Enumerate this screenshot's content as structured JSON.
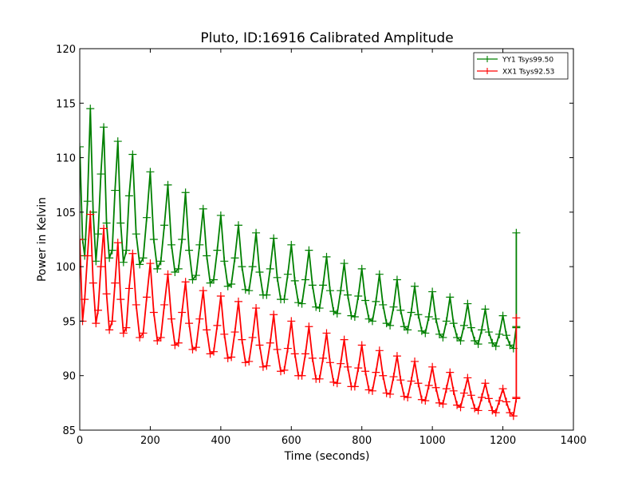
{
  "chart_data": {
    "type": "line",
    "title": "Pluto, ID:16916 Calibrated Amplitude",
    "xlabel": "Time (seconds)",
    "ylabel": "Power in Kelvin",
    "xlim": [
      0,
      1400
    ],
    "ylim": [
      85,
      120
    ],
    "x_ticks": [
      "0",
      "200",
      "400",
      "600",
      "800",
      "1000",
      "1200",
      "1400"
    ],
    "y_ticks": [
      "85",
      "90",
      "95",
      "100",
      "105",
      "110",
      "115",
      "120"
    ],
    "grid": false,
    "legend_position": "top-right",
    "marker": "plus",
    "series": [
      {
        "name": "YY1 Tsys99.50",
        "color": "#008000",
        "x": [
          0,
          8,
          14,
          22,
          30,
          38,
          46,
          52,
          60,
          68,
          76,
          84,
          92,
          100,
          108,
          116,
          124,
          132,
          140,
          150,
          160,
          170,
          180,
          190,
          200,
          210,
          220,
          230,
          240,
          250,
          260,
          270,
          280,
          290,
          300,
          310,
          320,
          330,
          340,
          350,
          360,
          370,
          380,
          390,
          400,
          410,
          420,
          430,
          440,
          450,
          460,
          470,
          480,
          490,
          500,
          510,
          520,
          530,
          540,
          550,
          560,
          570,
          580,
          590,
          600,
          610,
          620,
          630,
          640,
          650,
          660,
          670,
          680,
          690,
          700,
          710,
          720,
          730,
          740,
          750,
          760,
          770,
          780,
          790,
          800,
          810,
          820,
          830,
          840,
          850,
          860,
          870,
          880,
          890,
          900,
          910,
          920,
          930,
          940,
          950,
          960,
          970,
          980,
          990,
          1000,
          1010,
          1020,
          1030,
          1040,
          1050,
          1060,
          1070,
          1080,
          1090,
          1100,
          1110,
          1120,
          1130,
          1140,
          1150,
          1160,
          1170,
          1180,
          1190,
          1200,
          1210,
          1220,
          1230,
          1238,
          1238,
          1238
        ],
        "values": [
          111.0,
          102.5,
          101.0,
          106.0,
          114.5,
          105.0,
          100.5,
          103.0,
          108.5,
          112.8,
          104.0,
          100.8,
          101.5,
          107.0,
          111.5,
          104.0,
          100.4,
          101.5,
          106.5,
          110.3,
          103.0,
          100.2,
          100.8,
          104.5,
          108.7,
          102.5,
          99.8,
          100.5,
          103.8,
          107.5,
          102.0,
          99.5,
          99.8,
          102.5,
          106.8,
          101.5,
          98.8,
          99.2,
          102.0,
          105.3,
          101.0,
          98.5,
          98.8,
          101.5,
          104.7,
          100.5,
          98.2,
          98.4,
          100.8,
          103.8,
          100.0,
          97.9,
          97.8,
          100.0,
          103.1,
          99.5,
          97.4,
          97.4,
          99.8,
          102.6,
          99.0,
          97.0,
          97.0,
          99.3,
          102.0,
          98.7,
          96.7,
          96.6,
          98.8,
          101.5,
          98.3,
          96.3,
          96.2,
          98.3,
          100.9,
          97.8,
          95.9,
          95.7,
          97.8,
          100.3,
          97.4,
          95.5,
          95.4,
          97.3,
          99.8,
          96.9,
          95.2,
          95.0,
          96.8,
          99.3,
          96.5,
          94.8,
          94.6,
          96.3,
          98.8,
          96.0,
          94.5,
          94.2,
          95.8,
          98.2,
          95.6,
          94.1,
          93.9,
          95.4,
          97.7,
          95.2,
          93.8,
          93.5,
          95.0,
          97.2,
          94.8,
          93.5,
          93.2,
          94.6,
          96.6,
          94.4,
          93.2,
          92.9,
          94.2,
          96.1,
          94.0,
          93.0,
          92.7,
          93.8,
          95.5,
          93.7,
          92.8,
          92.5,
          94.5,
          103.1,
          94.4
        ]
      },
      {
        "name": "XX1 Tsys92.53",
        "color": "#ff0000",
        "x": [
          0,
          8,
          14,
          22,
          30,
          38,
          46,
          52,
          60,
          68,
          76,
          84,
          92,
          100,
          108,
          116,
          124,
          132,
          140,
          150,
          160,
          170,
          180,
          190,
          200,
          210,
          220,
          230,
          240,
          250,
          260,
          270,
          280,
          290,
          300,
          310,
          320,
          330,
          340,
          350,
          360,
          370,
          380,
          390,
          400,
          410,
          420,
          430,
          440,
          450,
          460,
          470,
          480,
          490,
          500,
          510,
          520,
          530,
          540,
          550,
          560,
          570,
          580,
          590,
          600,
          610,
          620,
          630,
          640,
          650,
          660,
          670,
          680,
          690,
          700,
          710,
          720,
          730,
          740,
          750,
          760,
          770,
          780,
          790,
          800,
          810,
          820,
          830,
          840,
          850,
          860,
          870,
          880,
          890,
          900,
          910,
          920,
          930,
          940,
          950,
          960,
          970,
          980,
          990,
          1000,
          1010,
          1020,
          1030,
          1040,
          1050,
          1060,
          1070,
          1080,
          1090,
          1100,
          1110,
          1120,
          1130,
          1140,
          1150,
          1160,
          1170,
          1180,
          1190,
          1200,
          1210,
          1220,
          1230,
          1238,
          1238,
          1238
        ],
        "values": [
          102.5,
          95.0,
          97.0,
          101.0,
          104.8,
          98.5,
          94.8,
          96.0,
          100.0,
          103.5,
          97.5,
          94.2,
          95.0,
          98.5,
          102.2,
          97.0,
          93.9,
          94.4,
          98.0,
          101.2,
          96.5,
          93.5,
          93.9,
          97.2,
          100.3,
          95.8,
          93.2,
          93.5,
          96.5,
          99.3,
          95.2,
          92.8,
          93.0,
          95.8,
          98.6,
          94.8,
          92.4,
          92.6,
          95.2,
          97.8,
          94.2,
          92.0,
          92.2,
          94.6,
          97.3,
          93.8,
          91.6,
          91.7,
          94.0,
          96.8,
          93.3,
          91.2,
          91.3,
          93.5,
          96.2,
          92.8,
          90.8,
          90.9,
          93.0,
          95.6,
          92.4,
          90.4,
          90.5,
          92.5,
          95.0,
          92.0,
          90.0,
          90.0,
          92.0,
          94.5,
          91.6,
          89.7,
          89.7,
          91.6,
          93.9,
          91.2,
          89.4,
          89.3,
          91.1,
          93.3,
          90.8,
          89.0,
          89.0,
          90.7,
          92.8,
          90.4,
          88.7,
          88.6,
          90.3,
          92.3,
          90.0,
          88.4,
          88.3,
          89.9,
          91.8,
          89.6,
          88.1,
          88.0,
          89.5,
          91.3,
          89.3,
          87.8,
          87.7,
          89.1,
          90.8,
          88.9,
          87.5,
          87.4,
          88.8,
          90.3,
          88.6,
          87.3,
          87.1,
          88.4,
          89.8,
          88.2,
          87.0,
          86.8,
          88.0,
          89.3,
          87.9,
          86.8,
          86.6,
          87.7,
          88.8,
          87.6,
          86.6,
          86.3,
          87.9,
          95.3,
          88.0
        ]
      }
    ]
  }
}
